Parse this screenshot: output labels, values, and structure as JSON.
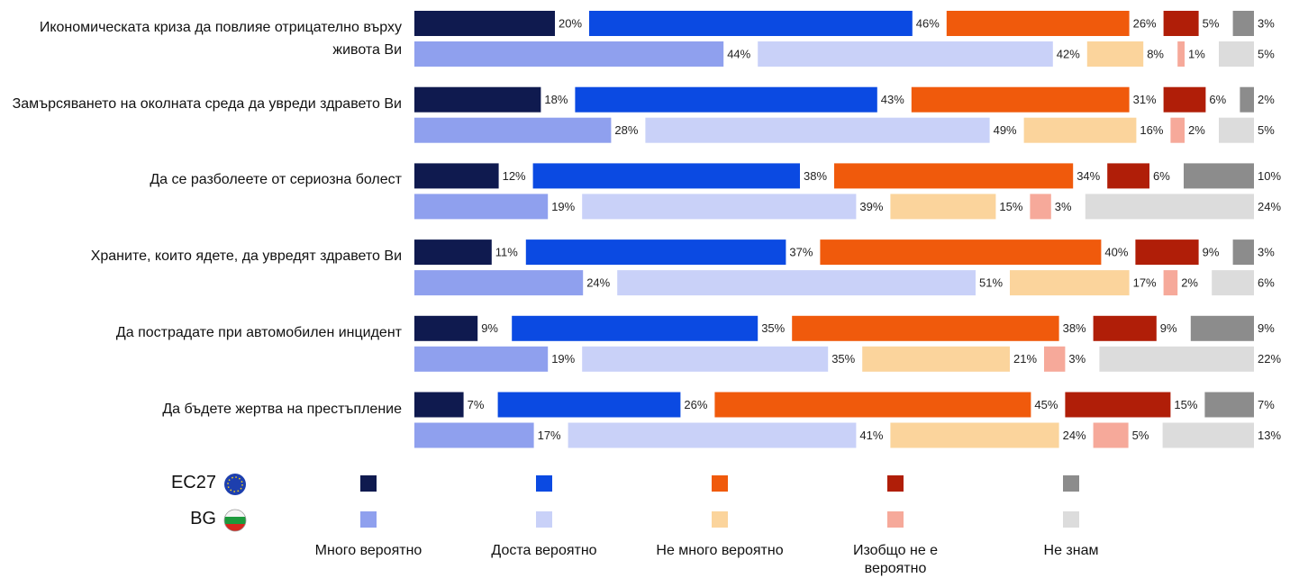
{
  "chart_data": {
    "type": "bar",
    "orientation": "horizontal",
    "stacked": true,
    "categories": [
      "Икономическата криза да повлияе отрицателно върху живота Ви",
      "Замърсяването на околната среда да увреди здравето Ви",
      "Да се разболеете от сериозна болест",
      "Храните, които ядете, да увредят здравето Ви",
      "Да пострадате при автомобилен инцидент",
      "Да бъдете жертва на престъпление"
    ],
    "series_names": [
      "Много вероятно",
      "Доста вероятно",
      "Не много вероятно",
      "Изобщо не е вероятно",
      "Не знам"
    ],
    "groups": [
      {
        "name": "ЕС27",
        "series": [
          {
            "color": "#0f1a4f",
            "values": [
              20,
              18,
              12,
              11,
              9,
              7
            ],
            "value_labels": [
              "20%",
              "18%",
              "12%",
              "11%",
              "9%",
              "7%"
            ]
          },
          {
            "color": "#0b4ae2",
            "values": [
              46,
              43,
              38,
              37,
              35,
              26
            ],
            "value_labels": [
              "46%",
              "43%",
              "38%",
              "37%",
              "35%",
              "26%"
            ]
          },
          {
            "color": "#f05a0c",
            "values": [
              26,
              31,
              34,
              40,
              38,
              45
            ],
            "value_labels": [
              "26%",
              "31%",
              "34%",
              "40%",
              "38%",
              "45%"
            ]
          },
          {
            "color": "#b01e08",
            "values": [
              5,
              6,
              6,
              9,
              9,
              15
            ],
            "value_labels": [
              "5%",
              "6%",
              "6%",
              "9%",
              "9%",
              "15%"
            ]
          },
          {
            "color": "#8c8c8c",
            "values": [
              3,
              2,
              10,
              3,
              9,
              7
            ],
            "value_labels": [
              "3%",
              "2%",
              "10%",
              "3%",
              "9%",
              "7%"
            ]
          }
        ]
      },
      {
        "name": "BG",
        "series": [
          {
            "color": "#8fa0ee",
            "values": [
              44,
              28,
              19,
              24,
              19,
              17
            ],
            "value_labels": [
              "44%",
              "28%",
              "19%",
              "24%",
              "19%",
              "17%"
            ]
          },
          {
            "color": "#c9d1f8",
            "values": [
              42,
              49,
              39,
              51,
              35,
              41
            ],
            "value_labels": [
              "42%",
              "49%",
              "39%",
              "51%",
              "35%",
              "41%"
            ]
          },
          {
            "color": "#fbd49c",
            "values": [
              8,
              16,
              15,
              17,
              21,
              24
            ],
            "value_labels": [
              "8%",
              "16%",
              "15%",
              "17%",
              "21%",
              "24%"
            ]
          },
          {
            "color": "#f6a99a",
            "values": [
              1,
              2,
              3,
              2,
              3,
              5
            ],
            "value_labels": [
              "1%",
              "2%",
              "3%",
              "2%",
              "3%",
              "5%"
            ]
          },
          {
            "color": "#dcdcdc",
            "values": [
              5,
              5,
              24,
              6,
              22,
              13
            ],
            "value_labels": [
              "5%",
              "5%",
              "24%",
              "6%",
              "22%",
              "13%"
            ]
          }
        ]
      }
    ]
  }
}
